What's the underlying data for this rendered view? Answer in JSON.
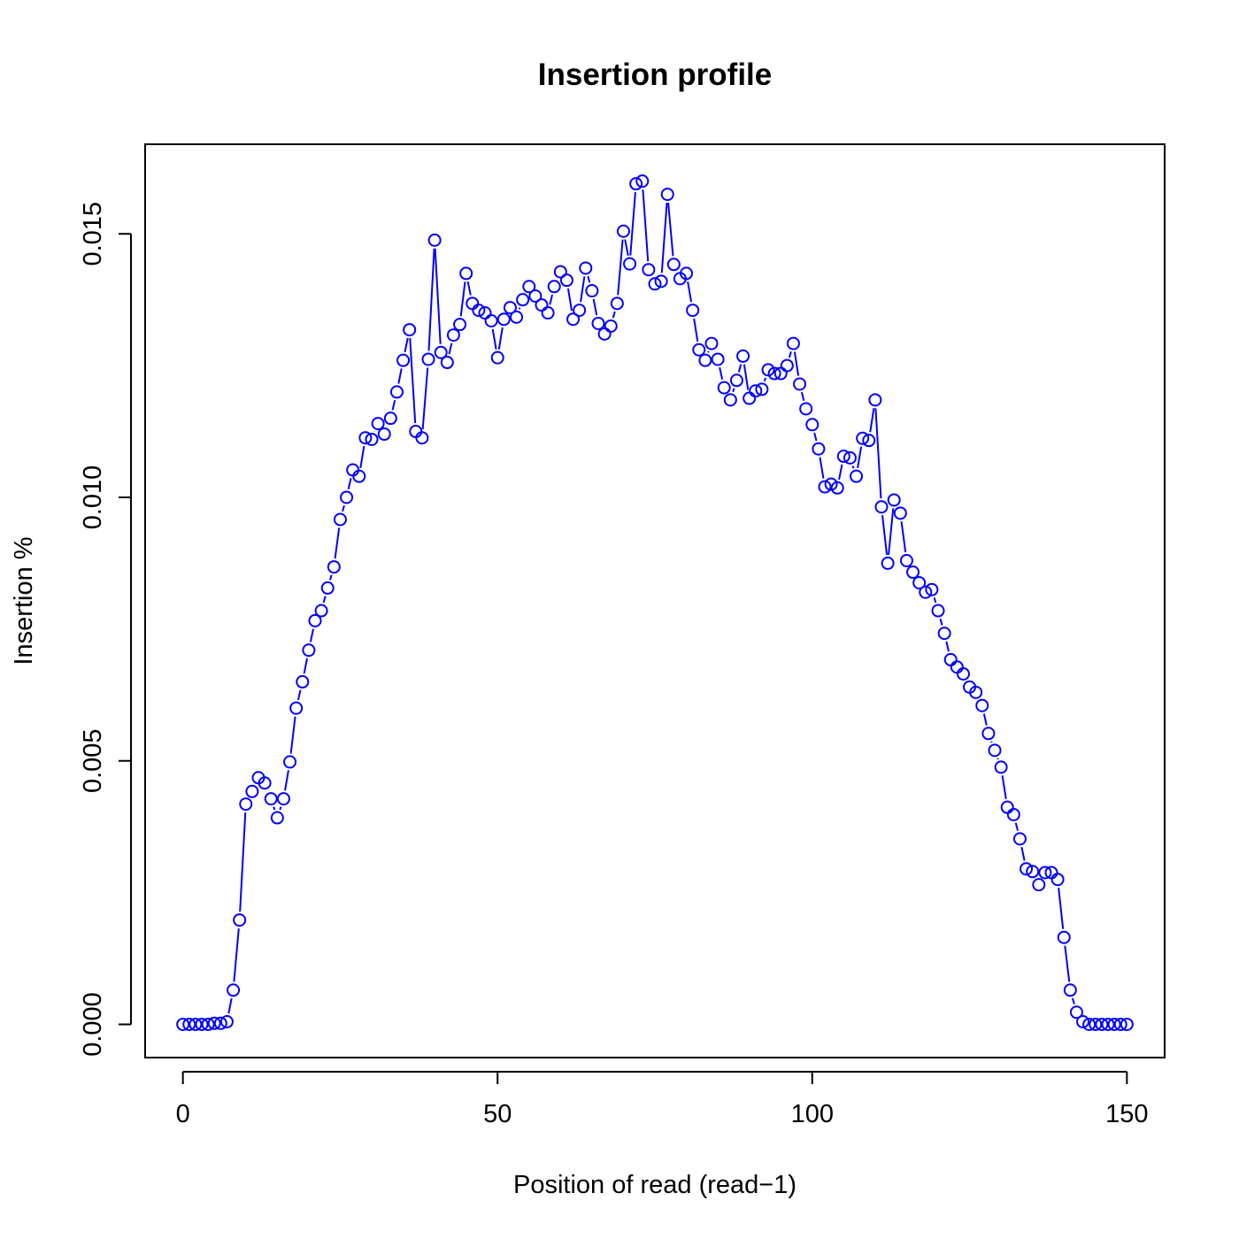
{
  "chart_data": {
    "type": "line",
    "title": "Insertion profile",
    "xlabel": "Position of read (read−1)",
    "ylabel": "Insertion %",
    "xlim": [
      -6,
      156
    ],
    "ylim": [
      -0.00063,
      0.0167
    ],
    "xticks": [
      0,
      50,
      100,
      150
    ],
    "xtick_labels": [
      "0",
      "50",
      "100",
      "150"
    ],
    "yticks": [
      0.0,
      0.005,
      0.01,
      0.015
    ],
    "ytick_labels": [
      "0.000",
      "0.005",
      "0.010",
      "0.015"
    ],
    "grid": false,
    "legend": "none",
    "style": "points-and-lines",
    "series_color": "#0000ff",
    "x": [
      0,
      1,
      2,
      3,
      4,
      5,
      6,
      7,
      8,
      9,
      10,
      11,
      12,
      13,
      14,
      15,
      16,
      17,
      18,
      19,
      20,
      21,
      22,
      23,
      24,
      25,
      26,
      27,
      28,
      29,
      30,
      31,
      32,
      33,
      34,
      35,
      36,
      37,
      38,
      39,
      40,
      41,
      42,
      43,
      44,
      45,
      46,
      47,
      48,
      49,
      50,
      51,
      52,
      53,
      54,
      55,
      56,
      57,
      58,
      59,
      60,
      61,
      62,
      63,
      64,
      65,
      66,
      67,
      68,
      69,
      70,
      71,
      72,
      73,
      74,
      75,
      76,
      77,
      78,
      79,
      80,
      81,
      82,
      83,
      84,
      85,
      86,
      87,
      88,
      89,
      90,
      91,
      92,
      93,
      94,
      95,
      96,
      97,
      98,
      99,
      100,
      101,
      102,
      103,
      104,
      105,
      106,
      107,
      108,
      109,
      110,
      111,
      112,
      113,
      114,
      115,
      116,
      117,
      118,
      119,
      120,
      121,
      122,
      123,
      124,
      125,
      126,
      127,
      128,
      129,
      130,
      131,
      132,
      133,
      134,
      135,
      136,
      137,
      138,
      139,
      140,
      141,
      142,
      143,
      144,
      145,
      146,
      147,
      148,
      149,
      150
    ],
    "series": [
      {
        "values": [
          0.0,
          0.0,
          0.0,
          0.0,
          0.0,
          2e-05,
          2e-05,
          5e-05,
          0.00065,
          0.00198,
          0.00418,
          0.00442,
          0.00468,
          0.00458,
          0.00428,
          0.00392,
          0.00428,
          0.00498,
          0.006,
          0.0065,
          0.0071,
          0.00766,
          0.00785,
          0.00828,
          0.00868,
          0.00958,
          0.01,
          0.01052,
          0.0104,
          0.01113,
          0.0111,
          0.0114,
          0.0112,
          0.0115,
          0.012,
          0.0126,
          0.01318,
          0.01125,
          0.01113,
          0.01262,
          0.01488,
          0.01275,
          0.01256,
          0.01308,
          0.01328,
          0.01425,
          0.01368,
          0.01355,
          0.0135,
          0.01335,
          0.01265,
          0.01338,
          0.0136,
          0.01342,
          0.01375,
          0.014,
          0.01382,
          0.01365,
          0.0135,
          0.014,
          0.01428,
          0.01412,
          0.01338,
          0.01355,
          0.01435,
          0.01392,
          0.0133,
          0.0131,
          0.01325,
          0.01368,
          0.01505,
          0.01443,
          0.01595,
          0.016,
          0.01432,
          0.01405,
          0.0141,
          0.01575,
          0.01442,
          0.01415,
          0.01425,
          0.01355,
          0.0128,
          0.0126,
          0.01292,
          0.01262,
          0.01208,
          0.01185,
          0.01222,
          0.01268,
          0.01188,
          0.01202,
          0.01205,
          0.01242,
          0.01235,
          0.01235,
          0.0125,
          0.01292,
          0.01215,
          0.01168,
          0.01138,
          0.01092,
          0.0102,
          0.01025,
          0.01018,
          0.01078,
          0.01075,
          0.0104,
          0.01112,
          0.01108,
          0.01185,
          0.00982,
          0.00875,
          0.00995,
          0.0097,
          0.0088,
          0.00858,
          0.00838,
          0.0082,
          0.00825,
          0.00785,
          0.00742,
          0.00692,
          0.00678,
          0.00665,
          0.0064,
          0.0063,
          0.00605,
          0.00552,
          0.0052,
          0.00488,
          0.00412,
          0.00398,
          0.00352,
          0.00295,
          0.0029,
          0.00265,
          0.00288,
          0.00288,
          0.00275,
          0.00165,
          0.00065,
          0.00023,
          5e-05,
          0.0,
          0.0,
          0.0,
          0.0,
          0.0,
          0.0,
          0.0
        ]
      }
    ]
  }
}
